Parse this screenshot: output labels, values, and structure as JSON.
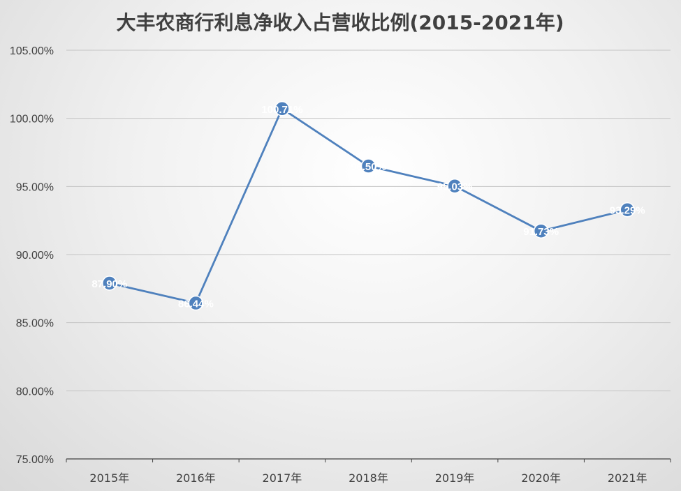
{
  "chart_data": {
    "type": "line",
    "title": "大丰农商行利息净收入占营收比例(2015-2021年)",
    "categories": [
      "2015年",
      "2016年",
      "2017年",
      "2018年",
      "2019年",
      "2020年",
      "2021年"
    ],
    "series": [
      {
        "values": [
          87.9,
          86.44,
          100.71,
          96.5,
          95.03,
          91.73,
          93.29
        ],
        "labels": [
          "87.90%",
          "86.44%",
          "100.71%",
          "96.50%",
          "95.03%",
          "91.73%",
          "93.29%"
        ],
        "color": "#4f81bd"
      }
    ],
    "ylim": [
      75,
      105
    ],
    "yticks": [
      75,
      80,
      85,
      90,
      95,
      100,
      105
    ],
    "ytick_labels": [
      "75.00%",
      "80.00%",
      "85.00%",
      "90.00%",
      "95.00%",
      "100.00%",
      "105.00%"
    ],
    "xlabel": "",
    "ylabel": "",
    "grid": true,
    "legend": "none"
  }
}
